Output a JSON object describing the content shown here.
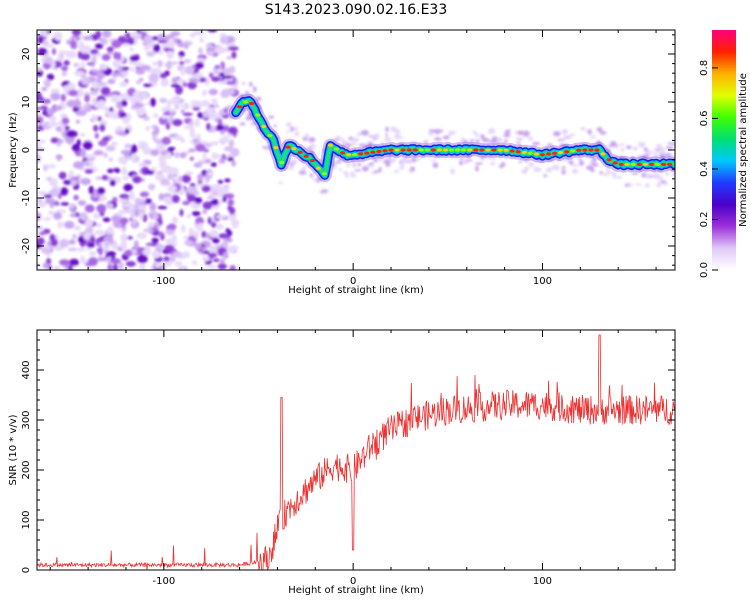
{
  "title": "S143.2023.090.02.16.E33",
  "chart_data": [
    {
      "type": "heatmap",
      "xlabel": "Height of straight line (km)",
      "ylabel": "Frequency (Hz)",
      "xlim": [
        -167,
        170
      ],
      "ylim": [
        -25,
        25
      ],
      "x_ticks": [
        -100,
        0,
        100
      ],
      "y_ticks": [
        -20,
        -10,
        0,
        10,
        20
      ],
      "colorbar": {
        "label": "Normalized spectral amplitude",
        "range": [
          0,
          0.95
        ],
        "ticks": [
          "0.0",
          "0.2",
          "0.4",
          "0.6",
          "0.8"
        ],
        "colormap": [
          "#ffffff",
          "#e0c8f8",
          "#9b30d9",
          "#4b00c8",
          "#1e3cff",
          "#00c8ff",
          "#00e070",
          "#40ff00",
          "#e0ff00",
          "#ffb000",
          "#ff2000",
          "#ff0080"
        ]
      },
      "noise_region_x": [
        -167,
        -62
      ],
      "ridge": {
        "x": [
          -62,
          -58,
          -54,
          -50,
          -46,
          -42,
          -38,
          -34,
          -30,
          -26,
          -22,
          -18,
          -15,
          -12,
          -8,
          -4,
          0,
          10,
          20,
          40,
          60,
          80,
          100,
          120,
          130,
          135,
          140,
          150,
          160,
          170
        ],
        "y": [
          8,
          10,
          10,
          7,
          4,
          2,
          -3,
          1,
          0,
          -1,
          -2,
          -4,
          -5,
          1,
          0,
          -1,
          -1,
          -0.5,
          0,
          0,
          0,
          0,
          -1,
          0,
          0,
          -2,
          -3,
          -3,
          -3,
          -3
        ]
      }
    },
    {
      "type": "line",
      "xlabel": "Height of straight line (km)",
      "ylabel": "SNR (10 * v/v)",
      "xlim": [
        -167,
        170
      ],
      "ylim": [
        0,
        480
      ],
      "x_ticks": [
        -100,
        0,
        100
      ],
      "y_ticks": [
        0,
        100,
        200,
        300,
        400
      ],
      "color": "#ee3030",
      "trend": {
        "x": [
          -167,
          -60,
          -45,
          -40,
          -35,
          -30,
          -25,
          -20,
          -10,
          0,
          10,
          20,
          30,
          50,
          80,
          100,
          120,
          140,
          170
        ],
        "y": [
          10,
          10,
          20,
          80,
          120,
          140,
          160,
          180,
          210,
          200,
          250,
          280,
          300,
          320,
          330,
          330,
          320,
          320,
          320
        ]
      },
      "noise_amplitude": 30,
      "spikes": [
        {
          "x": -38,
          "y": 345
        },
        {
          "x": 0,
          "y": 40
        },
        {
          "x": 130,
          "y": 470
        }
      ]
    }
  ]
}
